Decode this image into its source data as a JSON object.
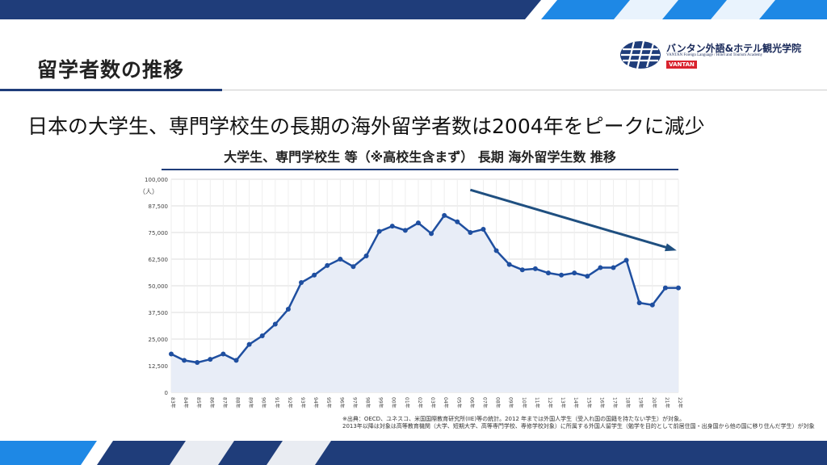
{
  "slide": {
    "title": "留学者数の推移",
    "headline": "日本の大学生、専門学校生の長期の海外留学者数は2004年をピークに減少"
  },
  "logo": {
    "name_jp": "バンタン外語&ホテル観光学院",
    "name_en": "VANTAN Foreign Language / Hotel and Tourism Academy",
    "badge": "VANTAN"
  },
  "colors": {
    "accent": "#1f3d7a",
    "band_light": "#1e88e5",
    "line": "#1f4fa0",
    "area": "#e8edf7"
  },
  "chart_data": {
    "type": "area",
    "title": "大学生、専門学校生 等（※高校生含まず） 長期 海外留学生数 推移",
    "unit_label": "（人）",
    "ylim": [
      0,
      100000
    ],
    "yticks": [
      "0",
      "12,500",
      "25,000",
      "37,500",
      "50,000",
      "62,500",
      "75,000",
      "87,500",
      "100,000"
    ],
    "grid": true,
    "x": [
      "83年",
      "84年",
      "85年",
      "86年",
      "87年",
      "88年",
      "89年",
      "90年",
      "91年",
      "92年",
      "93年",
      "94年",
      "95年",
      "96年",
      "97年",
      "98年",
      "99年",
      "00年",
      "01年",
      "02年",
      "03年",
      "04年",
      "05年",
      "06年",
      "07年",
      "08年",
      "09年",
      "10年",
      "11年",
      "12年",
      "13年",
      "14年",
      "15年",
      "16年",
      "17年",
      "18年",
      "19年",
      "20年",
      "21年",
      "22年"
    ],
    "series": [
      {
        "values": [
          18000,
          15000,
          14000,
          15500,
          18000,
          15000,
          22500,
          26500,
          32000,
          39000,
          51500,
          55000,
          59500,
          62500,
          59000,
          64000,
          75500,
          78000,
          76000,
          79500,
          74500,
          83000,
          80000,
          75000,
          76500,
          66500,
          60000,
          57500,
          58000,
          56000,
          55000,
          56000,
          54500,
          58500,
          58500,
          62000,
          42000,
          41000,
          49000,
          49000
        ]
      }
    ],
    "trend_annotation": "arrow from 06年 to 22年 indicating decline"
  },
  "source_note": "※出典：OECD、ユネスコ、米国国際教育研究所(IIE)等の統計。2012 年までは外国人学生（受入れ国の国籍を持たない学生）が対象。\n2013年以降は対象は高等教育機関（大学、短期大学、高等専門学校、専修学校対象）に所属する外国人留学生（勉学を目的として前居住国・出身国から他の国に移り住んだ学生）が対象"
}
